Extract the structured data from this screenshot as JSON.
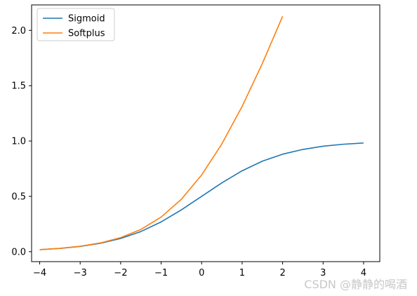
{
  "chart_data": {
    "type": "line",
    "xlim": [
      -4.2,
      4.4
    ],
    "ylim": [
      -0.09,
      2.23
    ],
    "x_ticks": [
      "−4",
      "−3",
      "−2",
      "−1",
      "0",
      "1",
      "2",
      "3",
      "4"
    ],
    "x_tick_values": [
      -4,
      -3,
      -2,
      -1,
      0,
      1,
      2,
      3,
      4
    ],
    "y_ticks": [
      "0.0",
      "0.5",
      "1.0",
      "1.5",
      "2.0"
    ],
    "y_tick_values": [
      0.0,
      0.5,
      1.0,
      1.5,
      2.0
    ],
    "grid": false,
    "legend_position": "top-left",
    "series": [
      {
        "name": "Sigmoid",
        "color": "#1f77b4",
        "x": [
          -4,
          -3.5,
          -3,
          -2.5,
          -2,
          -1.5,
          -1,
          -0.5,
          0,
          0.5,
          1,
          1.5,
          2,
          2.5,
          3,
          3.5,
          4
        ],
        "y": [
          0.018,
          0.029,
          0.047,
          0.076,
          0.119,
          0.182,
          0.269,
          0.378,
          0.5,
          0.622,
          0.731,
          0.818,
          0.881,
          0.924,
          0.953,
          0.971,
          0.982
        ]
      },
      {
        "name": "Softplus",
        "color": "#ff7f0e",
        "x": [
          -4,
          -3.5,
          -3,
          -2.5,
          -2,
          -1.5,
          -1,
          -0.5,
          0,
          0.5,
          1,
          1.5,
          2
        ],
        "y": [
          0.018,
          0.03,
          0.049,
          0.079,
          0.127,
          0.201,
          0.313,
          0.474,
          0.693,
          0.974,
          1.313,
          1.701,
          2.127
        ]
      }
    ]
  },
  "watermark": "CSDN @静静的喝酒"
}
